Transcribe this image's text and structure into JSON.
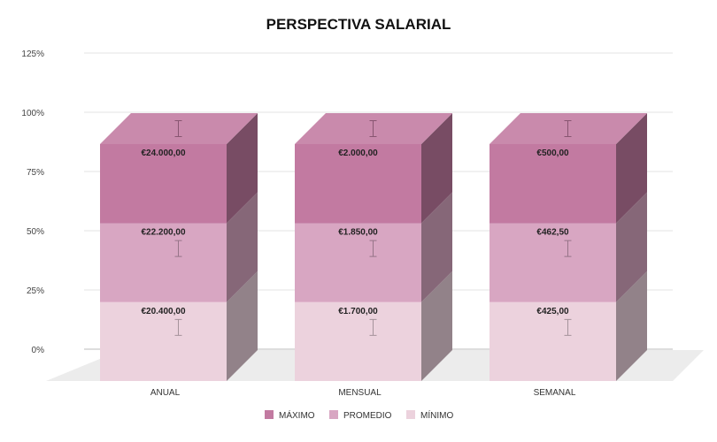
{
  "chart_data": {
    "type": "bar",
    "stacked": true,
    "three_d": true,
    "title": "PERSPECTIVA SALARIAL",
    "categories": [
      "ANUAL",
      "MENSUAL",
      "SEMANAL"
    ],
    "y_ticks": [
      "0%",
      "25%",
      "50%",
      "75%",
      "100%",
      "125%"
    ],
    "ylim": [
      0,
      125
    ],
    "grid": true,
    "legend_position": "bottom",
    "series": [
      {
        "name": "MÍNIMO",
        "color": "#ecd2dd",
        "values": [
          33.3,
          33.3,
          33.3
        ],
        "labels": [
          "€20.400,00",
          "€1.700,00",
          "€425,00"
        ]
      },
      {
        "name": "PROMEDIO",
        "color": "#d8a6c2",
        "values": [
          33.3,
          33.3,
          33.3
        ],
        "labels": [
          "€22.200,00",
          "€1.850,00",
          "€462,50"
        ]
      },
      {
        "name": "MÁXIMO",
        "color": "#c27aa1",
        "values": [
          33.4,
          33.4,
          33.4
        ],
        "labels": [
          "€24.000,00",
          "€2.000,00",
          "€500,00"
        ]
      }
    ],
    "legend_order": [
      "MÁXIMO",
      "PROMEDIO",
      "MÍNIMO"
    ],
    "error_bars": true
  }
}
